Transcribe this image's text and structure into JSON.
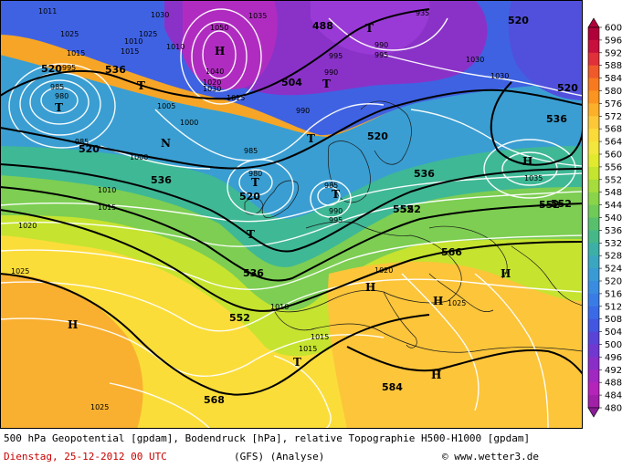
{
  "footer": {
    "line1": "500 hPa Geopotential [gpdam], Bodendruck [hPa], relative Topographie H500-H1000 [gpdam]",
    "date": "Dienstag, 25-12-2012  00 UTC",
    "model": "(GFS)  (Analyse)",
    "credit": "© www.wetter3.de"
  },
  "legend": {
    "values": [
      "600",
      "596",
      "592",
      "588",
      "584",
      "580",
      "576",
      "572",
      "568",
      "564",
      "560",
      "556",
      "552",
      "548",
      "544",
      "540",
      "536",
      "532",
      "528",
      "524",
      "520",
      "516",
      "512",
      "508",
      "504",
      "500",
      "496",
      "492",
      "488",
      "484",
      "480"
    ],
    "colors": [
      "#b0003a",
      "#c8103c",
      "#e0303a",
      "#f05a2a",
      "#f87a20",
      "#fb9420",
      "#fcb02a",
      "#fcc838",
      "#fbdb3a",
      "#f3e63c",
      "#e2ea2e",
      "#c5e430",
      "#a6dc3c",
      "#8ad44a",
      "#6fca58",
      "#58c06c",
      "#46b888",
      "#3cb0a6",
      "#3aa6c0",
      "#3a9ad4",
      "#3a8ce0",
      "#3a7ce6",
      "#3a6ae6",
      "#4256e0",
      "#5a44d8",
      "#7038d0",
      "#8a2ec8",
      "#a028c0",
      "#b424b8",
      "#a020a8",
      "#8a1c96"
    ]
  },
  "map": {
    "pressure_systems": [
      {
        "label": "T"
      },
      {
        "label": "T"
      },
      {
        "label": "T"
      },
      {
        "label": "T"
      },
      {
        "label": "T"
      },
      {
        "label": "T"
      },
      {
        "label": "T"
      },
      {
        "label": "T"
      },
      {
        "label": "T"
      },
      {
        "label": "H"
      },
      {
        "label": "H"
      },
      {
        "label": "H"
      },
      {
        "label": "H"
      },
      {
        "label": "H"
      },
      {
        "label": "H"
      },
      {
        "label": "H"
      },
      {
        "label": "N"
      }
    ],
    "geopotential_labels": [
      "520",
      "536",
      "520",
      "488",
      "504",
      "520",
      "536",
      "552",
      "536",
      "520",
      "536",
      "552",
      "536",
      "552",
      "566",
      "552",
      "568",
      "584",
      "520",
      "552",
      "520"
    ],
    "isobar_labels": [
      "1011",
      "1025",
      "1015",
      "1030",
      "1025",
      "1010",
      "1010",
      "1050",
      "1035",
      "1040",
      "1030",
      "1020",
      "1015",
      "990",
      "995",
      "935",
      "990",
      "995",
      "1030",
      "985",
      "980",
      "995",
      "1015",
      "1005",
      "1000",
      "990",
      "985",
      "1000",
      "980",
      "985",
      "1010",
      "1015",
      "985",
      "990",
      "995",
      "1020",
      "1025",
      "1020",
      "1025",
      "1010",
      "1015",
      "1015",
      "1025",
      "1035",
      "1030"
    ]
  }
}
